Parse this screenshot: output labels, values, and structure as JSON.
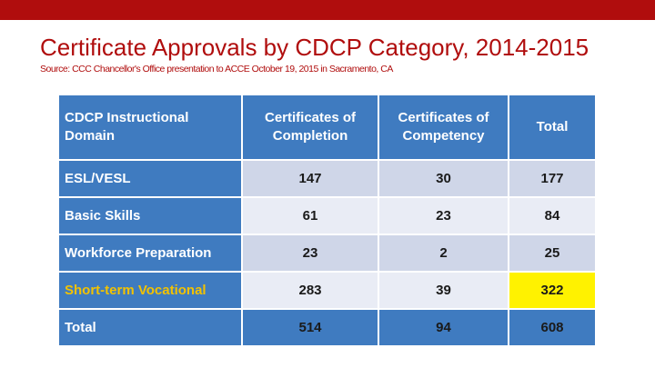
{
  "slide": {
    "title": "Certificate Approvals by CDCP Category, 2014-2015",
    "source": "Source: CCC Chancellor's Office presentation to ACCE October 19, 2015 in Sacramento, CA",
    "accent_color": "#b00d0d",
    "table_header_color": "#3f7bc0",
    "highlight_color": "#fff200"
  },
  "table": {
    "headers": [
      "CDCP Instructional Domain",
      "Certificates of Completion",
      "Certificates of Competency",
      "Total"
    ],
    "rows": [
      {
        "label": "ESL/VESL",
        "completion": "147",
        "competency": "30",
        "total": "177"
      },
      {
        "label": "Basic Skills",
        "completion": "61",
        "competency": "23",
        "total": "84"
      },
      {
        "label": "Workforce Preparation",
        "completion": "23",
        "competency": "2",
        "total": "25"
      },
      {
        "label": "Short-term Vocational",
        "completion": "283",
        "competency": "39",
        "total": "322"
      },
      {
        "label": "Total",
        "completion": "514",
        "competency": "94",
        "total": "608"
      }
    ]
  }
}
